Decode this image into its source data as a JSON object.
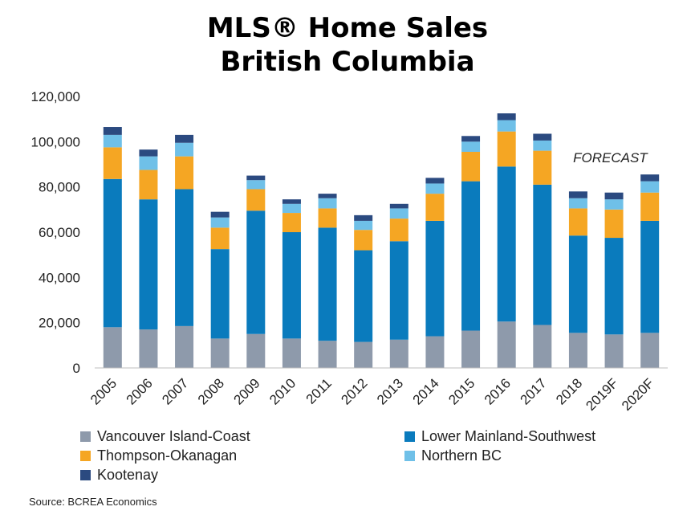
{
  "title_line1": "MLS® Home Sales",
  "title_line2": "British Columbia",
  "source": "Source: BCREA Economics",
  "chart_data": {
    "type": "bar",
    "stacked": true,
    "categories": [
      "2005",
      "2006",
      "2007",
      "2008",
      "2009",
      "2010",
      "2011",
      "2012",
      "2013",
      "2014",
      "2015",
      "2016",
      "2017",
      "2018",
      "2019F",
      "2020F"
    ],
    "series": [
      {
        "name": "Vancouver Island-Coast",
        "color": "#8e9aab",
        "values": [
          18000,
          17000,
          18500,
          13000,
          15000,
          13000,
          12000,
          11500,
          12500,
          14000,
          16500,
          20500,
          19000,
          15500,
          14800,
          15500
        ]
      },
      {
        "name": "Lower Mainland-Southwest",
        "color": "#0a7bbd",
        "values": [
          65500,
          57500,
          60500,
          39500,
          54500,
          47000,
          50000,
          40500,
          43500,
          51000,
          66000,
          68500,
          62000,
          43000,
          42700,
          49500
        ]
      },
      {
        "name": "Thompson-Okanagan",
        "color": "#f5a623",
        "values": [
          14000,
          13000,
          14500,
          9500,
          9500,
          8500,
          8500,
          9000,
          10000,
          12000,
          13000,
          15500,
          15000,
          12000,
          12500,
          12500
        ]
      },
      {
        "name": "Northern BC",
        "color": "#6fc0e8",
        "values": [
          5500,
          6000,
          6000,
          4500,
          4000,
          4000,
          4500,
          4000,
          4500,
          4500,
          4500,
          5000,
          4500,
          4500,
          4500,
          5000
        ]
      },
      {
        "name": "Kootenay",
        "color": "#2b4a80",
        "values": [
          3500,
          3000,
          3500,
          2500,
          2000,
          2000,
          2000,
          2500,
          2000,
          2500,
          2500,
          3000,
          3000,
          3000,
          3000,
          3000
        ]
      }
    ],
    "ylim": [
      0,
      120000
    ],
    "yticks": [
      "0",
      "20,000",
      "40,000",
      "60,000",
      "80,000",
      "100,000",
      "120,000"
    ],
    "ytick_values": [
      0,
      20000,
      40000,
      60000,
      80000,
      100000,
      120000
    ],
    "annotation": "FORECAST",
    "grid": false,
    "legend_position": "bottom"
  }
}
